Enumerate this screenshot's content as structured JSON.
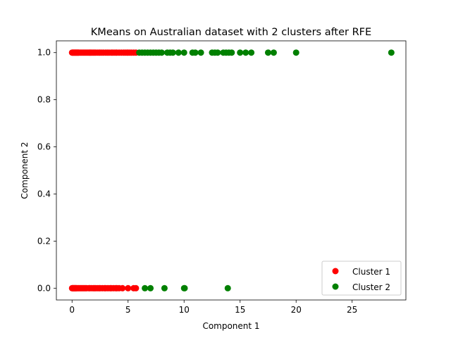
{
  "chart_data": {
    "type": "scatter",
    "title": "KMeans on Australian dataset with 2 clusters after RFE",
    "xlabel": "Component 1",
    "ylabel": "Component 2",
    "xlim": [
      -1.4,
      29.8
    ],
    "ylim": [
      -0.05,
      1.05
    ],
    "xticks": [
      0,
      5,
      10,
      15,
      20,
      25
    ],
    "yticks": [
      0.0,
      0.2,
      0.4,
      0.6,
      0.8,
      1.0
    ],
    "xtick_labels": [
      "0",
      "5",
      "10",
      "15",
      "20",
      "25"
    ],
    "ytick_labels": [
      "0.0",
      "0.2",
      "0.4",
      "0.6",
      "0.8",
      "1.0"
    ],
    "legend_position": "lower-right",
    "grid": false,
    "series": [
      {
        "name": "Cluster 1",
        "color": "#ff0000",
        "points": [
          [
            0.0,
            1
          ],
          [
            0.05,
            1
          ],
          [
            0.1,
            1
          ],
          [
            0.15,
            1
          ],
          [
            0.2,
            1
          ],
          [
            0.25,
            1
          ],
          [
            0.3,
            1
          ],
          [
            0.35,
            1
          ],
          [
            0.4,
            1
          ],
          [
            0.45,
            1
          ],
          [
            0.5,
            1
          ],
          [
            0.55,
            1
          ],
          [
            0.6,
            1
          ],
          [
            0.7,
            1
          ],
          [
            0.8,
            1
          ],
          [
            0.9,
            1
          ],
          [
            1.0,
            1
          ],
          [
            1.1,
            1
          ],
          [
            1.2,
            1
          ],
          [
            1.3,
            1
          ],
          [
            1.4,
            1
          ],
          [
            1.5,
            1
          ],
          [
            1.6,
            1
          ],
          [
            1.7,
            1
          ],
          [
            1.8,
            1
          ],
          [
            1.9,
            1
          ],
          [
            2.0,
            1
          ],
          [
            2.1,
            1
          ],
          [
            2.25,
            1
          ],
          [
            2.4,
            1
          ],
          [
            2.5,
            1
          ],
          [
            2.65,
            1
          ],
          [
            2.8,
            1
          ],
          [
            3.0,
            1
          ],
          [
            3.15,
            1
          ],
          [
            3.3,
            1
          ],
          [
            3.5,
            1
          ],
          [
            3.6,
            1
          ],
          [
            3.75,
            1
          ],
          [
            3.9,
            1
          ],
          [
            4.0,
            1
          ],
          [
            4.2,
            1
          ],
          [
            4.4,
            1
          ],
          [
            4.6,
            1
          ],
          [
            4.75,
            1
          ],
          [
            4.9,
            1
          ],
          [
            5.0,
            1
          ],
          [
            5.15,
            1
          ],
          [
            5.3,
            1
          ],
          [
            5.5,
            1
          ],
          [
            5.7,
            1
          ],
          [
            0.0,
            0
          ],
          [
            0.05,
            0
          ],
          [
            0.1,
            0
          ],
          [
            0.15,
            0
          ],
          [
            0.2,
            0
          ],
          [
            0.25,
            0
          ],
          [
            0.3,
            0
          ],
          [
            0.35,
            0
          ],
          [
            0.4,
            0
          ],
          [
            0.5,
            0
          ],
          [
            0.6,
            0
          ],
          [
            0.7,
            0
          ],
          [
            0.8,
            0
          ],
          [
            0.9,
            0
          ],
          [
            1.0,
            0
          ],
          [
            1.1,
            0
          ],
          [
            1.2,
            0
          ],
          [
            1.3,
            0
          ],
          [
            1.5,
            0
          ],
          [
            1.6,
            0
          ],
          [
            1.75,
            0
          ],
          [
            1.9,
            0
          ],
          [
            2.0,
            0
          ],
          [
            2.1,
            0
          ],
          [
            2.25,
            0
          ],
          [
            2.4,
            0
          ],
          [
            2.5,
            0
          ],
          [
            2.7,
            0
          ],
          [
            2.9,
            0
          ],
          [
            3.0,
            0
          ],
          [
            3.2,
            0
          ],
          [
            3.4,
            0
          ],
          [
            3.5,
            0
          ],
          [
            3.7,
            0
          ],
          [
            3.9,
            0
          ],
          [
            4.0,
            0
          ],
          [
            4.2,
            0
          ],
          [
            4.5,
            0
          ],
          [
            5.0,
            0
          ],
          [
            5.5,
            0
          ],
          [
            5.7,
            0
          ]
        ]
      },
      {
        "name": "Cluster 2",
        "color": "#008000",
        "points": [
          [
            6.0,
            1
          ],
          [
            6.25,
            1
          ],
          [
            6.5,
            1
          ],
          [
            6.75,
            1
          ],
          [
            7.0,
            1
          ],
          [
            7.25,
            1
          ],
          [
            7.5,
            1
          ],
          [
            7.75,
            1
          ],
          [
            8.0,
            1
          ],
          [
            8.5,
            1
          ],
          [
            8.75,
            1
          ],
          [
            9.0,
            1
          ],
          [
            9.5,
            1
          ],
          [
            10.0,
            1
          ],
          [
            10.75,
            1
          ],
          [
            11.0,
            1
          ],
          [
            11.5,
            1
          ],
          [
            12.5,
            1
          ],
          [
            12.75,
            1
          ],
          [
            13.0,
            1
          ],
          [
            13.5,
            1
          ],
          [
            13.75,
            1
          ],
          [
            14.0,
            1
          ],
          [
            14.25,
            1
          ],
          [
            15.0,
            1
          ],
          [
            15.5,
            1
          ],
          [
            16.0,
            1
          ],
          [
            17.5,
            1
          ],
          [
            18.0,
            1
          ],
          [
            20.0,
            1
          ],
          [
            28.5,
            1
          ],
          [
            6.5,
            0
          ],
          [
            7.0,
            0
          ],
          [
            8.25,
            0
          ],
          [
            10.0,
            0
          ],
          [
            10.05,
            0
          ],
          [
            13.9,
            0
          ]
        ]
      }
    ]
  }
}
